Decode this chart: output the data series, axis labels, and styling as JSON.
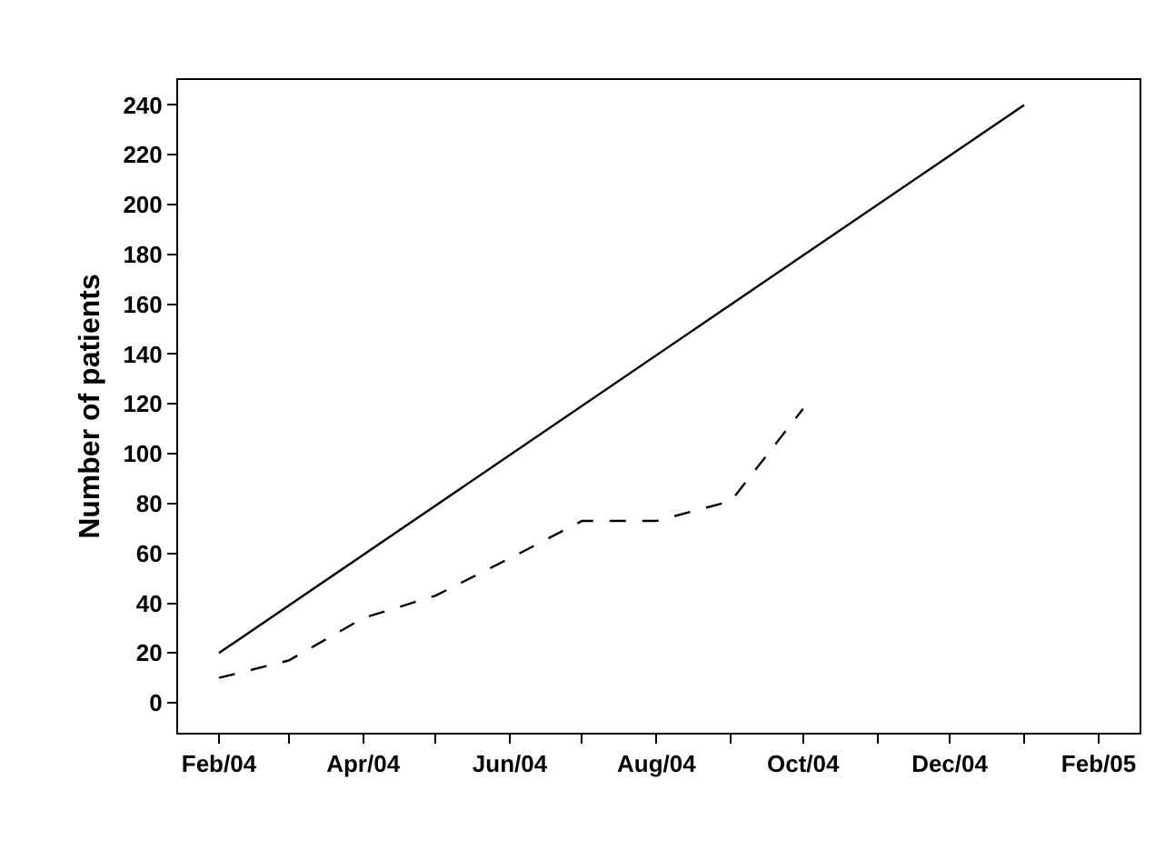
{
  "chart_data": {
    "type": "line",
    "ylabel": "Number of patients",
    "series": [
      {
        "color": "#000000",
        "line_style": "solid",
        "x": [
          "2004-02",
          "2005-01"
        ],
        "values": [
          20,
          240
        ]
      },
      {
        "color": "#000000",
        "line_style": "dashed",
        "x": [
          "2004-02",
          "2004-03",
          "2004-04",
          "2004-05",
          "2004-06",
          "2004-07",
          "2004-08",
          "2004-09",
          "2004-10"
        ],
        "values": [
          10,
          17,
          34,
          43,
          58,
          73,
          73,
          81,
          118
        ]
      }
    ],
    "xlim": [
      "2004-01-15",
      "2005-02-18"
    ],
    "xticks": [
      {
        "value": "2004-02",
        "label": "Feb/04"
      },
      {
        "value": "2004-03",
        "label": null
      },
      {
        "value": "2004-04",
        "label": "Apr/04"
      },
      {
        "value": "2004-05",
        "label": null
      },
      {
        "value": "2004-06",
        "label": "Jun/04"
      },
      {
        "value": "2004-07",
        "label": null
      },
      {
        "value": "2004-08",
        "label": "Aug/04"
      },
      {
        "value": "2004-09",
        "label": null
      },
      {
        "value": "2004-10",
        "label": "Oct/04"
      },
      {
        "value": "2004-11",
        "label": null
      },
      {
        "value": "2004-12",
        "label": "Dec/04"
      },
      {
        "value": "2005-01",
        "label": null
      },
      {
        "value": "2005-02",
        "label": "Feb/05"
      }
    ],
    "ylim": [
      -12,
      250
    ],
    "yticks": [
      0,
      20,
      40,
      60,
      80,
      100,
      120,
      140,
      160,
      180,
      200,
      220,
      240
    ]
  }
}
